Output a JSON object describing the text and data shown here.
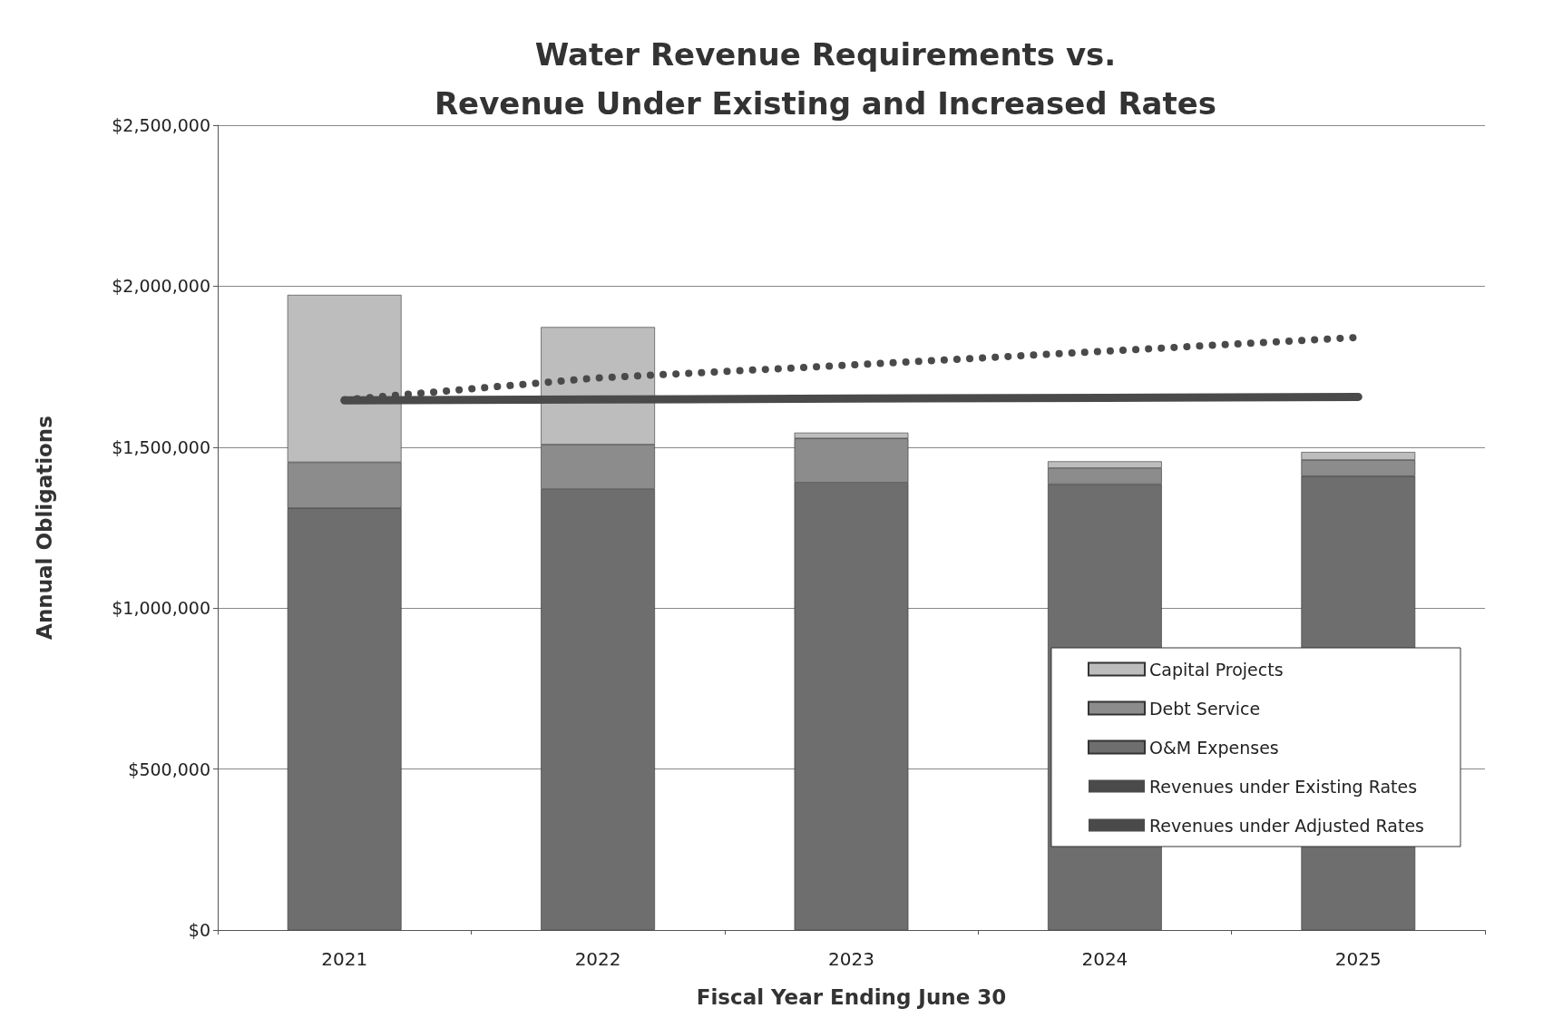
{
  "chart_data": {
    "type": "bar",
    "stacked": true,
    "title": "Water Revenue Requirements vs.\nRevenue Under Existing and Increased Rates",
    "xlabel": "Fiscal Year Ending June 30",
    "ylabel": "Annual Obligations",
    "categories": [
      "2021",
      "2022",
      "2023",
      "2024",
      "2025"
    ],
    "series": [
      {
        "name": "O&M Expenses",
        "color": "#6e6e6e",
        "values": [
          1310000,
          1370000,
          1390000,
          1385000,
          1410000
        ]
      },
      {
        "name": "Debt Service",
        "color": "#8c8c8c",
        "values": [
          143000,
          138000,
          137000,
          50000,
          50000
        ]
      },
      {
        "name": "Capital Projects",
        "color": "#bdbdbd",
        "values": [
          520000,
          365000,
          18000,
          21000,
          25000
        ]
      },
      {
        "name": "Revenues under Existing Rates",
        "type": "line",
        "color": "#4a4a4a",
        "line_style": "solid",
        "values": [
          1645000,
          1648000,
          1651000,
          1653000,
          1656000
        ]
      },
      {
        "name": "Revenues under Adjusted Rates",
        "type": "line",
        "color": "#4a4a4a",
        "line_style": "dotted",
        "values": [
          1647000,
          1715000,
          1755000,
          1798000,
          1841000
        ]
      }
    ],
    "ylim": [
      0,
      2500000
    ],
    "yticks": [
      {
        "value": 0,
        "label": "$0"
      },
      {
        "value": 500000,
        "label": "$500,000"
      },
      {
        "value": 1000000,
        "label": "$1,000,000"
      },
      {
        "value": 1500000,
        "label": "$1,500,000"
      },
      {
        "value": 2000000,
        "label": "$2,000,000"
      },
      {
        "value": 2500000,
        "label": "$2,500,000"
      }
    ],
    "grid": "y",
    "legend": "bottom right",
    "marker": "none"
  }
}
